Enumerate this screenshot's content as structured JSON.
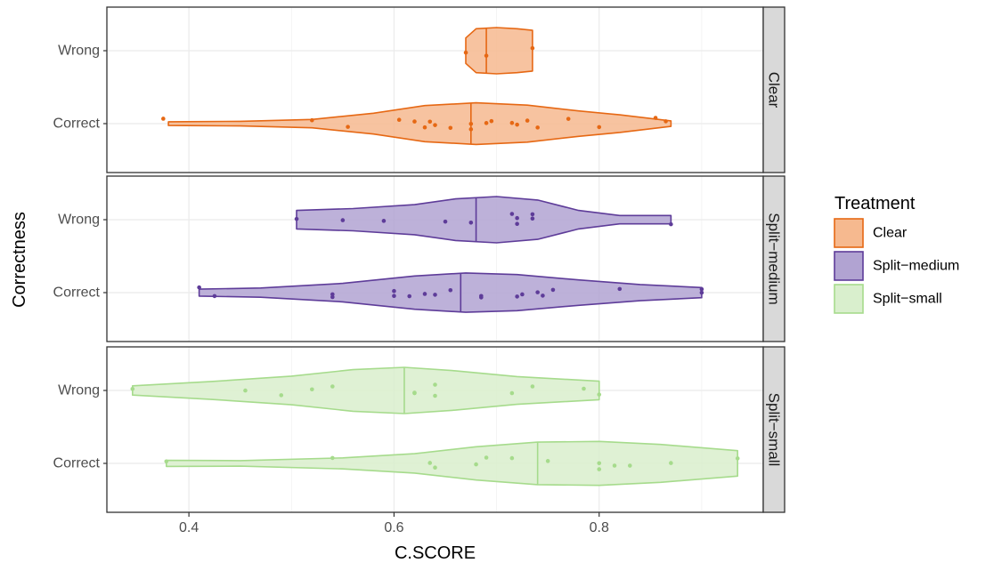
{
  "chart_data": {
    "type": "violin",
    "xlabel": "C.SCORE",
    "ylabel": "Correctness",
    "xlim": [
      0.32,
      0.96
    ],
    "x_ticks": [
      "0.4",
      "0.6",
      "0.8"
    ],
    "y_categories": [
      "Wrong",
      "Correct"
    ],
    "grid": true,
    "legend": {
      "title": "Treatment",
      "position": "right",
      "entries": [
        "Clear",
        "Split−medium",
        "Split−small"
      ]
    },
    "colors": {
      "Clear": {
        "fill": "#f6b98f",
        "stroke": "#e66814"
      },
      "Split-medium": {
        "fill": "#b1a3d2",
        "stroke": "#5e3c99"
      },
      "Split-small": {
        "fill": "#d9efcd",
        "stroke": "#a6db8c"
      }
    },
    "panels": [
      {
        "facet": "Clear",
        "groups": [
          {
            "correctness": "Wrong",
            "median": 0.69,
            "profile": [
              [
                0.67,
                0.55
              ],
              [
                0.68,
                0.95
              ],
              [
                0.7,
                1.0
              ],
              [
                0.72,
                0.95
              ],
              [
                0.735,
                0.88
              ]
            ],
            "points": [
              0.67,
              0.69,
              0.735
            ]
          },
          {
            "correctness": "Correct",
            "median": 0.675,
            "profile": [
              [
                0.38,
                0.08
              ],
              [
                0.45,
                0.1
              ],
              [
                0.52,
                0.18
              ],
              [
                0.58,
                0.45
              ],
              [
                0.63,
                0.78
              ],
              [
                0.68,
                0.9
              ],
              [
                0.73,
                0.8
              ],
              [
                0.78,
                0.55
              ],
              [
                0.82,
                0.38
              ],
              [
                0.87,
                0.12
              ]
            ],
            "points": [
              0.375,
              0.52,
              0.555,
              0.605,
              0.62,
              0.63,
              0.635,
              0.64,
              0.655,
              0.675,
              0.675,
              0.695,
              0.69,
              0.715,
              0.72,
              0.73,
              0.74,
              0.77,
              0.8,
              0.855,
              0.865
            ]
          }
        ]
      },
      {
        "facet": "Split−medium",
        "groups": [
          {
            "correctness": "Wrong",
            "median": 0.68,
            "profile": [
              [
                0.505,
                0.4
              ],
              [
                0.56,
                0.48
              ],
              [
                0.62,
                0.65
              ],
              [
                0.66,
                0.9
              ],
              [
                0.7,
                1.0
              ],
              [
                0.74,
                0.85
              ],
              [
                0.78,
                0.4
              ],
              [
                0.82,
                0.18
              ],
              [
                0.87,
                0.18
              ]
            ],
            "points": [
              0.505,
              0.55,
              0.59,
              0.65,
              0.675,
              0.72,
              0.72,
              0.715,
              0.735,
              0.735,
              0.87
            ]
          },
          {
            "correctness": "Correct",
            "median": 0.665,
            "profile": [
              [
                0.41,
                0.15
              ],
              [
                0.47,
                0.2
              ],
              [
                0.55,
                0.4
              ],
              [
                0.62,
                0.72
              ],
              [
                0.67,
                0.85
              ],
              [
                0.72,
                0.78
              ],
              [
                0.78,
                0.55
              ],
              [
                0.84,
                0.35
              ],
              [
                0.9,
                0.22
              ]
            ],
            "points": [
              0.41,
              0.425,
              0.54,
              0.54,
              0.6,
              0.6,
              0.615,
              0.63,
              0.64,
              0.655,
              0.685,
              0.685,
              0.72,
              0.725,
              0.74,
              0.745,
              0.755,
              0.82,
              0.9,
              0.9
            ]
          }
        ]
      },
      {
        "facet": "Split−small",
        "groups": [
          {
            "correctness": "Wrong",
            "median": 0.61,
            "profile": [
              [
                0.345,
                0.2
              ],
              [
                0.42,
                0.38
              ],
              [
                0.5,
                0.62
              ],
              [
                0.56,
                0.9
              ],
              [
                0.61,
                1.0
              ],
              [
                0.66,
                0.85
              ],
              [
                0.72,
                0.6
              ],
              [
                0.8,
                0.4
              ]
            ],
            "points": [
              0.345,
              0.455,
              0.49,
              0.52,
              0.54,
              0.62,
              0.62,
              0.64,
              0.64,
              0.715,
              0.735,
              0.785,
              0.8
            ]
          },
          {
            "correctness": "Correct",
            "median": 0.74,
            "profile": [
              [
                0.378,
                0.13
              ],
              [
                0.45,
                0.12
              ],
              [
                0.55,
                0.24
              ],
              [
                0.62,
                0.42
              ],
              [
                0.68,
                0.72
              ],
              [
                0.74,
                0.92
              ],
              [
                0.8,
                0.95
              ],
              [
                0.86,
                0.82
              ],
              [
                0.935,
                0.55
              ]
            ],
            "points": [
              0.378,
              0.54,
              0.635,
              0.64,
              0.68,
              0.69,
              0.715,
              0.75,
              0.8,
              0.8,
              0.815,
              0.83,
              0.87,
              0.935
            ]
          }
        ]
      }
    ]
  }
}
